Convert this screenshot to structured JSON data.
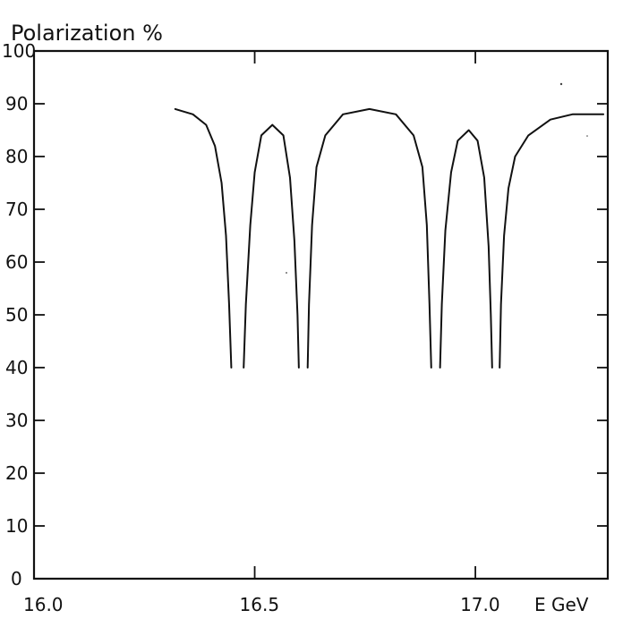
{
  "chart_data": {
    "type": "line",
    "title": "",
    "ylabel": "Polarization %",
    "xlabel": "E GeV",
    "xlim": [
      16.0,
      17.3
    ],
    "ylim": [
      0,
      100
    ],
    "grid": false,
    "x_ticks": [
      16.0,
      16.5,
      17.0
    ],
    "x_tick_labels": [
      "16.0",
      "16.5",
      "17.0"
    ],
    "y_ticks": [
      0,
      10,
      20,
      30,
      40,
      50,
      60,
      70,
      80,
      90,
      100
    ],
    "y_tick_labels": [
      "0",
      "10",
      "20",
      "30",
      "40",
      "50",
      "60",
      "70",
      "80",
      "90",
      "100"
    ],
    "series": [
      {
        "segments": [
          [
            {
              "x": 16.32,
              "y": 89
            },
            {
              "x": 16.36,
              "y": 88
            },
            {
              "x": 16.39,
              "y": 86
            },
            {
              "x": 16.41,
              "y": 82
            },
            {
              "x": 16.425,
              "y": 75
            },
            {
              "x": 16.435,
              "y": 65
            },
            {
              "x": 16.442,
              "y": 52
            },
            {
              "x": 16.447,
              "y": 40
            }
          ],
          [
            {
              "x": 16.475,
              "y": 40
            },
            {
              "x": 16.48,
              "y": 52
            },
            {
              "x": 16.49,
              "y": 67
            },
            {
              "x": 16.5,
              "y": 77
            },
            {
              "x": 16.515,
              "y": 84
            },
            {
              "x": 16.54,
              "y": 86
            },
            {
              "x": 16.565,
              "y": 84
            },
            {
              "x": 16.58,
              "y": 76
            },
            {
              "x": 16.59,
              "y": 64
            },
            {
              "x": 16.597,
              "y": 50
            },
            {
              "x": 16.6,
              "y": 40
            }
          ],
          [
            {
              "x": 16.62,
              "y": 40
            },
            {
              "x": 16.623,
              "y": 52
            },
            {
              "x": 16.63,
              "y": 67
            },
            {
              "x": 16.64,
              "y": 78
            },
            {
              "x": 16.66,
              "y": 84
            },
            {
              "x": 16.7,
              "y": 88
            },
            {
              "x": 16.76,
              "y": 89
            },
            {
              "x": 16.82,
              "y": 88
            },
            {
              "x": 16.86,
              "y": 84
            },
            {
              "x": 16.88,
              "y": 78
            },
            {
              "x": 16.89,
              "y": 67
            },
            {
              "x": 16.896,
              "y": 52
            },
            {
              "x": 16.9,
              "y": 40
            }
          ],
          [
            {
              "x": 16.92,
              "y": 40
            },
            {
              "x": 16.924,
              "y": 52
            },
            {
              "x": 16.932,
              "y": 66
            },
            {
              "x": 16.945,
              "y": 77
            },
            {
              "x": 16.96,
              "y": 83
            },
            {
              "x": 16.985,
              "y": 85
            },
            {
              "x": 17.005,
              "y": 83
            },
            {
              "x": 17.02,
              "y": 76
            },
            {
              "x": 17.03,
              "y": 63
            },
            {
              "x": 17.035,
              "y": 50
            },
            {
              "x": 17.038,
              "y": 40
            }
          ],
          [
            {
              "x": 17.055,
              "y": 40
            },
            {
              "x": 17.058,
              "y": 52
            },
            {
              "x": 17.065,
              "y": 65
            },
            {
              "x": 17.075,
              "y": 74
            },
            {
              "x": 17.09,
              "y": 80
            },
            {
              "x": 17.12,
              "y": 84
            },
            {
              "x": 17.17,
              "y": 87
            },
            {
              "x": 17.22,
              "y": 88
            },
            {
              "x": 17.29,
              "y": 88
            }
          ]
        ]
      }
    ],
    "annotations": []
  }
}
